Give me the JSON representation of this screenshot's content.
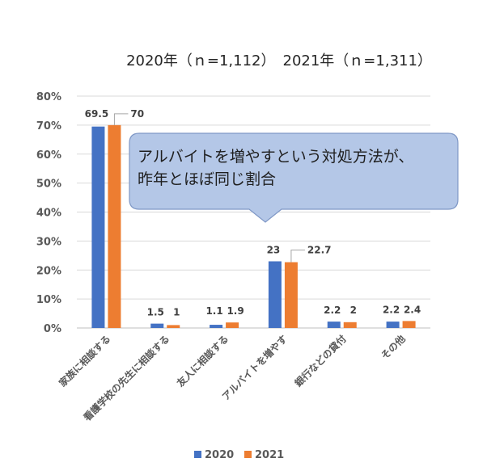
{
  "chart_data": {
    "type": "bar",
    "title": "2020年（ｎ=1,112）　2021年（ｎ=1,311）",
    "categories": [
      "家族に相談する",
      "看護学校の先生に相談する",
      "友人に相談する",
      "アルバイトを増やす",
      "銀行などの貸付",
      "その他"
    ],
    "series": [
      {
        "name": "2020",
        "color": "#4472c4",
        "values": [
          69.5,
          1.5,
          1.1,
          23,
          2.2,
          2.2
        ],
        "labels": [
          "69.5",
          "1.5",
          "1.1",
          "23",
          "2.2",
          "2.2"
        ]
      },
      {
        "name": "2021",
        "color": "#ed7d31",
        "values": [
          70,
          1,
          1.9,
          22.7,
          2,
          2.4
        ],
        "labels": [
          "70",
          "1",
          "1.9",
          "22.7",
          "2",
          "2.4"
        ]
      }
    ],
    "ylim": [
      0,
      80
    ],
    "yticks": [
      "0%",
      "10%",
      "20%",
      "30%",
      "40%",
      "50%",
      "60%",
      "70%",
      "80%"
    ],
    "grid": true,
    "legend": "bottom",
    "callout": "アルバイトを増やすという対処方法が、\n昨年とほぼ同じ割合",
    "callout_color": "#b4c7e7"
  }
}
